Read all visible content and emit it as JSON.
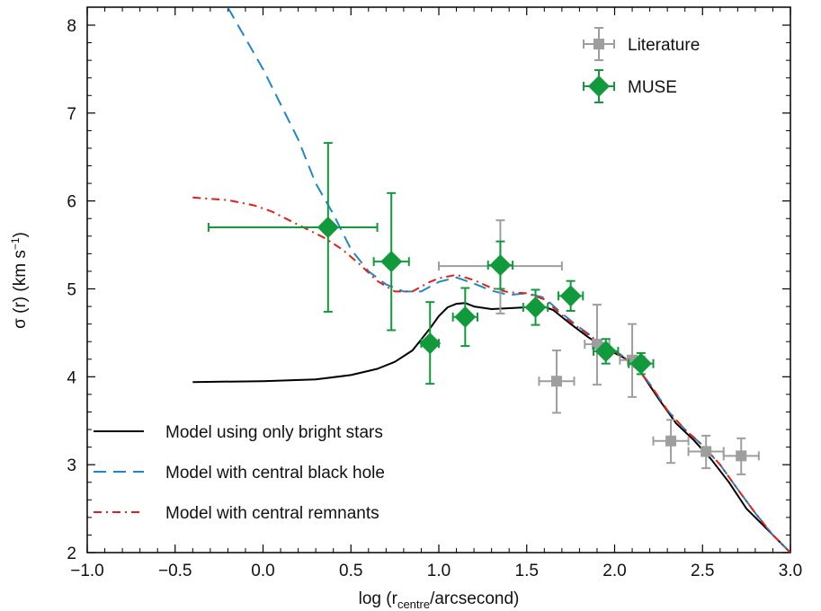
{
  "chart_data": {
    "type": "scatter",
    "xlabel": {
      "prefix": "log (r",
      "sub": "centre",
      "suffix": "/arcsecond)"
    },
    "ylabel": {
      "main": "σ (r) (km s",
      "sup": "−1",
      "close": ")"
    },
    "xlim": [
      -1.0,
      3.0
    ],
    "ylim": [
      2,
      8.2
    ],
    "x_ticks": [
      -1.0,
      -0.5,
      0.0,
      0.5,
      1.0,
      1.5,
      2.0,
      2.5,
      3.0
    ],
    "x_tick_labels": [
      "−1.0",
      "−0.5",
      "0.0",
      "0.5",
      "1.0",
      "1.5",
      "2.0",
      "2.5",
      "3.0"
    ],
    "y_ticks": [
      2,
      3,
      4,
      5,
      6,
      7,
      8
    ],
    "y_tick_labels": [
      "2",
      "3",
      "4",
      "5",
      "6",
      "7",
      "8"
    ],
    "grid": false,
    "series_points": [
      {
        "name": "Literature",
        "marker": "square",
        "color": "#9e9e9e",
        "points": [
          {
            "x": 1.35,
            "y": 5.26,
            "xerr": [
              0.35,
              0.35
            ],
            "yerr": [
              0.54,
              0.52
            ]
          },
          {
            "x": 1.67,
            "y": 3.95,
            "xerr": [
              0.1,
              0.1
            ],
            "yerr": [
              0.36,
              0.35
            ]
          },
          {
            "x": 1.9,
            "y": 4.37,
            "xerr": [
              0.07,
              0.07
            ],
            "yerr": [
              0.46,
              0.45
            ]
          },
          {
            "x": 2.1,
            "y": 4.19,
            "xerr": [
              0.07,
              0.07
            ],
            "yerr": [
              0.42,
              0.41
            ]
          },
          {
            "x": 2.32,
            "y": 3.27,
            "xerr": [
              0.1,
              0.1
            ],
            "yerr": [
              0.25,
              0.24
            ]
          },
          {
            "x": 2.52,
            "y": 3.15,
            "xerr": [
              0.1,
              0.1
            ],
            "yerr": [
              0.19,
              0.18
            ]
          },
          {
            "x": 2.72,
            "y": 3.1,
            "xerr": [
              0.1,
              0.1
            ],
            "yerr": [
              0.21,
              0.2
            ]
          }
        ]
      },
      {
        "name": "MUSE",
        "marker": "diamond",
        "color": "#119a3b",
        "points": [
          {
            "x": 0.37,
            "y": 5.7,
            "xerr": [
              0.68,
              0.28
            ],
            "yerr": [
              0.96,
              0.96
            ]
          },
          {
            "x": 0.73,
            "y": 5.31,
            "xerr": [
              0.1,
              0.1
            ],
            "yerr": [
              0.78,
              0.78
            ]
          },
          {
            "x": 0.95,
            "y": 4.38,
            "xerr": [
              0.05,
              0.05
            ],
            "yerr": [
              0.46,
              0.47
            ]
          },
          {
            "x": 1.15,
            "y": 4.68,
            "xerr": [
              0.07,
              0.07
            ],
            "yerr": [
              0.33,
              0.33
            ]
          },
          {
            "x": 1.35,
            "y": 5.27,
            "xerr": [
              0.07,
              0.07
            ],
            "yerr": [
              0.27,
              0.27
            ]
          },
          {
            "x": 1.55,
            "y": 4.79,
            "xerr": [
              0.07,
              0.07
            ],
            "yerr": [
              0.2,
              0.2
            ]
          },
          {
            "x": 1.75,
            "y": 4.92,
            "xerr": [
              0.07,
              0.07
            ],
            "yerr": [
              0.17,
              0.17
            ]
          },
          {
            "x": 1.95,
            "y": 4.29,
            "xerr": [
              0.07,
              0.07
            ],
            "yerr": [
              0.14,
              0.14
            ]
          },
          {
            "x": 2.15,
            "y": 4.15,
            "xerr": [
              0.07,
              0.07
            ],
            "yerr": [
              0.12,
              0.12
            ]
          }
        ]
      }
    ],
    "series_lines": [
      {
        "name": "Model using only bright stars",
        "style": "solid",
        "color": "#000000",
        "x": [
          -0.4,
          0.0,
          0.3,
          0.5,
          0.65,
          0.75,
          0.85,
          0.95,
          1.0,
          1.05,
          1.1,
          1.15,
          1.2,
          1.3,
          1.4,
          1.5,
          1.58,
          1.65,
          1.75,
          1.85,
          1.95,
          2.05,
          2.15,
          2.25,
          2.35,
          2.45,
          2.55,
          2.65,
          2.75,
          2.85,
          2.95,
          3.0
        ],
        "y": [
          3.94,
          3.95,
          3.97,
          4.02,
          4.09,
          4.17,
          4.3,
          4.55,
          4.69,
          4.79,
          4.83,
          4.84,
          4.8,
          4.77,
          4.78,
          4.79,
          4.81,
          4.76,
          4.6,
          4.45,
          4.32,
          4.22,
          4.05,
          3.75,
          3.47,
          3.28,
          3.06,
          2.8,
          2.5,
          2.3,
          2.1,
          2.0
        ]
      },
      {
        "name": "Model with central black hole",
        "style": "dashed",
        "color": "#1f87c9",
        "x": [
          -0.2,
          -0.1,
          0.0,
          0.1,
          0.2,
          0.3,
          0.4,
          0.5,
          0.6,
          0.7,
          0.8,
          0.9,
          1.0,
          1.1,
          1.2,
          1.3,
          1.4,
          1.5,
          1.6,
          1.7,
          1.8,
          1.9,
          2.0,
          2.1,
          2.2,
          2.3,
          2.4,
          2.5,
          2.6,
          2.7,
          2.8,
          2.9,
          3.0
        ],
        "y": [
          8.2,
          7.85,
          7.5,
          7.1,
          6.7,
          6.2,
          5.85,
          5.45,
          5.2,
          5.05,
          4.97,
          4.97,
          5.08,
          5.13,
          5.06,
          4.98,
          4.93,
          4.95,
          4.9,
          4.72,
          4.56,
          4.42,
          4.3,
          4.16,
          3.92,
          3.62,
          3.4,
          3.22,
          3.0,
          2.72,
          2.45,
          2.2,
          2.0
        ]
      },
      {
        "name": "Model with central remnants",
        "style": "dashdot",
        "color": "#e0201b",
        "x": [
          -0.4,
          -0.2,
          -0.05,
          0.05,
          0.15,
          0.25,
          0.35,
          0.45,
          0.55,
          0.65,
          0.75,
          0.85,
          0.95,
          1.0,
          1.1,
          1.2,
          1.3,
          1.4,
          1.5,
          1.6,
          1.7,
          1.8,
          1.9,
          2.0,
          2.1,
          2.2,
          2.3,
          2.4,
          2.5,
          2.6,
          2.7,
          2.8,
          2.9,
          3.0
        ],
        "y": [
          6.04,
          6.01,
          5.95,
          5.88,
          5.78,
          5.68,
          5.58,
          5.45,
          5.28,
          5.09,
          4.97,
          4.97,
          5.08,
          5.12,
          5.16,
          5.1,
          5.01,
          4.96,
          4.95,
          4.88,
          4.7,
          4.55,
          4.41,
          4.29,
          4.16,
          3.92,
          3.62,
          3.4,
          3.22,
          3.0,
          2.72,
          2.45,
          2.2,
          2.0
        ]
      }
    ],
    "legend_points_placement": "top-right",
    "legend_lines_placement": "bottom-left"
  }
}
